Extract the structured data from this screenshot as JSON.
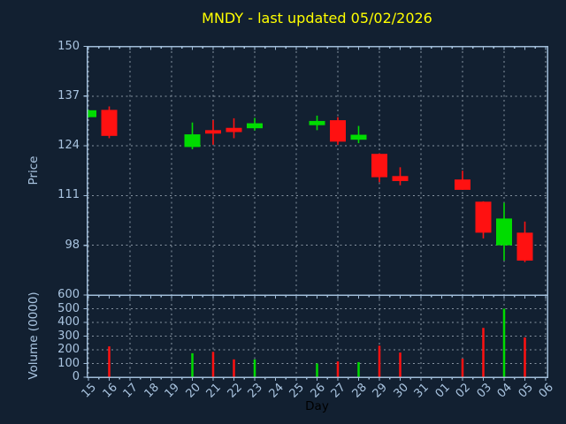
{
  "title": "MNDY - last updated 05/02/2026",
  "axes": {
    "xlabel": "Day",
    "xticklabels": [
      "15",
      "16",
      "17",
      "18",
      "19",
      "20",
      "21",
      "22",
      "23",
      "24",
      "25",
      "26",
      "27",
      "28",
      "29",
      "30",
      "31",
      "01",
      "02",
      "03",
      "04",
      "05",
      "06"
    ],
    "price": {
      "ylabel": "Price",
      "yticks": [
        150,
        137,
        124,
        111,
        98
      ],
      "ylim": [
        85,
        150
      ]
    },
    "volume": {
      "ylabel": "Volume (0000)",
      "yticks": [
        600,
        500,
        400,
        300,
        200,
        100,
        0
      ],
      "ylim": [
        0,
        600
      ]
    }
  },
  "colors": {
    "background": "#122031",
    "up": "#00dc00",
    "down": "#ff1111",
    "title": "#ffff00",
    "tick_labels": "#a9c4e0",
    "axis_spine": "#a0bcd8",
    "grid": "#9ca8b5",
    "day_label": "#000000"
  },
  "chart_data": {
    "type": "candlestick",
    "panels": [
      "price",
      "volume"
    ],
    "x_categories": [
      "15",
      "16",
      "17",
      "18",
      "19",
      "20",
      "21",
      "22",
      "23",
      "24",
      "25",
      "26",
      "27",
      "28",
      "29",
      "30",
      "31",
      "01",
      "02",
      "03",
      "04",
      "05",
      "06"
    ],
    "grid": "dashed, vertical line every 2nd day, horizontal at each y tick",
    "candles": [
      {
        "day": "15",
        "x_index": 0,
        "open": 131.5,
        "high": 133.4,
        "low": 131.4,
        "close": 133.3,
        "volume_0000": 0,
        "direction": "up"
      },
      {
        "day": "16",
        "x_index": 1,
        "open": 133.4,
        "high": 134.3,
        "low": 126.0,
        "close": 126.6,
        "volume_0000": 225,
        "direction": "down"
      },
      {
        "day": "20",
        "x_index": 5,
        "open": 123.7,
        "high": 130.1,
        "low": 123.1,
        "close": 127.0,
        "volume_0000": 175,
        "direction": "up"
      },
      {
        "day": "21",
        "x_index": 6,
        "open": 128.1,
        "high": 130.7,
        "low": 124.3,
        "close": 127.2,
        "volume_0000": 185,
        "direction": "down"
      },
      {
        "day": "22",
        "x_index": 7,
        "open": 128.7,
        "high": 131.2,
        "low": 126.0,
        "close": 127.6,
        "volume_0000": 130,
        "direction": "down"
      },
      {
        "day": "23",
        "x_index": 8,
        "open": 128.6,
        "high": 131.3,
        "low": 128.0,
        "close": 129.9,
        "volume_0000": 130,
        "direction": "up"
      },
      {
        "day": "26",
        "x_index": 11,
        "open": 129.4,
        "high": 131.9,
        "low": 128.1,
        "close": 130.5,
        "volume_0000": 100,
        "direction": "up"
      },
      {
        "day": "27",
        "x_index": 12,
        "open": 130.7,
        "high": 131.5,
        "low": 124.3,
        "close": 125.1,
        "volume_0000": 115,
        "direction": "down"
      },
      {
        "day": "28",
        "x_index": 13,
        "open": 125.6,
        "high": 129.2,
        "low": 124.7,
        "close": 126.9,
        "volume_0000": 110,
        "direction": "up"
      },
      {
        "day": "29",
        "x_index": 14,
        "open": 121.9,
        "high": 122.0,
        "low": 114.5,
        "close": 115.8,
        "volume_0000": 230,
        "direction": "down"
      },
      {
        "day": "30",
        "x_index": 15,
        "open": 116.1,
        "high": 118.4,
        "low": 113.7,
        "close": 114.8,
        "volume_0000": 180,
        "direction": "down"
      },
      {
        "day": "02",
        "x_index": 18,
        "open": 115.2,
        "high": 117.5,
        "low": 112.5,
        "close": 112.5,
        "volume_0000": 135,
        "direction": "down"
      },
      {
        "day": "03",
        "x_index": 19,
        "open": 109.4,
        "high": 109.5,
        "low": 99.8,
        "close": 101.3,
        "volume_0000": 360,
        "direction": "down"
      },
      {
        "day": "04",
        "x_index": 20,
        "open": 98.0,
        "high": 109.1,
        "low": 94.0,
        "close": 105.0,
        "volume_0000": 500,
        "direction": "up"
      },
      {
        "day": "05",
        "x_index": 21,
        "open": 101.3,
        "high": 104.2,
        "low": 93.6,
        "close": 94.0,
        "volume_0000": 290,
        "direction": "down"
      }
    ],
    "gridline_day_indices": [
      0,
      2,
      4,
      6,
      8,
      10,
      12,
      14,
      16,
      18,
      20,
      22
    ]
  }
}
